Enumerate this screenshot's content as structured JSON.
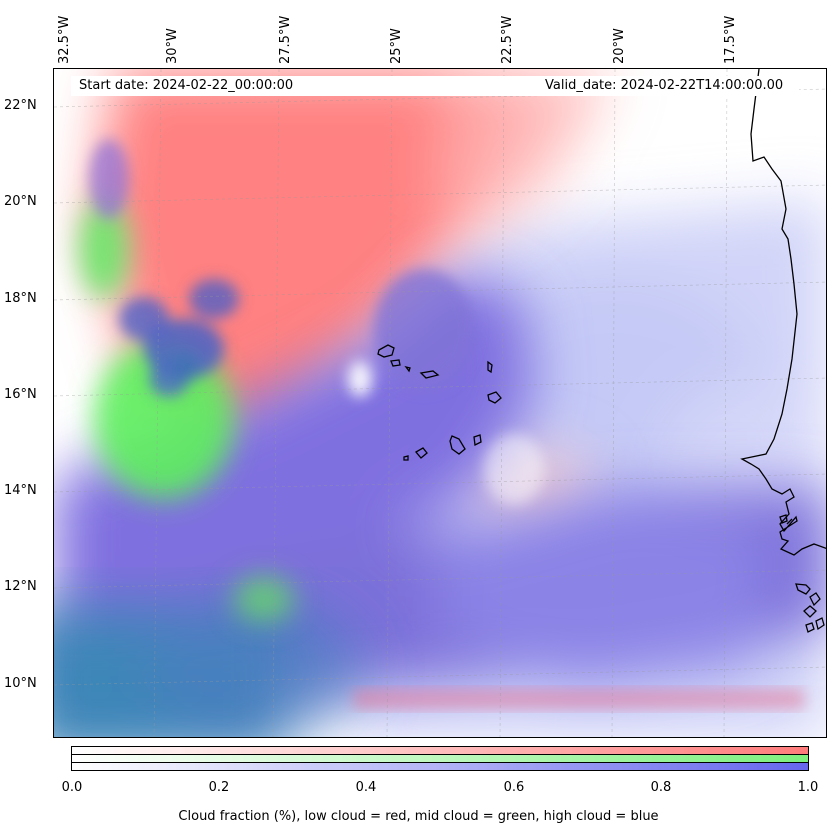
{
  "header": {
    "start_date": "Start date: 2024-02-22_00:00:00",
    "valid_date": "Valid_date: 2024-02-22T14:00:00.00"
  },
  "map": {
    "lon_labels": [
      "32.5°W",
      "30°W",
      "27.5°W",
      "25°W",
      "22.5°W",
      "20°W",
      "17.5°W"
    ],
    "lat_labels": [
      "22°N",
      "20°N",
      "18°N",
      "16°N",
      "14°N",
      "12°N",
      "10°N"
    ],
    "gridlines": true
  },
  "colorbar": {
    "ticks": [
      "0.0",
      "0.2",
      "0.4",
      "0.6",
      "0.8",
      "1.0"
    ],
    "caption": "Cloud fraction (%), low cloud = red, mid cloud = green, high cloud = blue",
    "colors": {
      "low": "#ff7b7b",
      "mid": "#7df07d",
      "high": "#6666ee"
    }
  }
}
